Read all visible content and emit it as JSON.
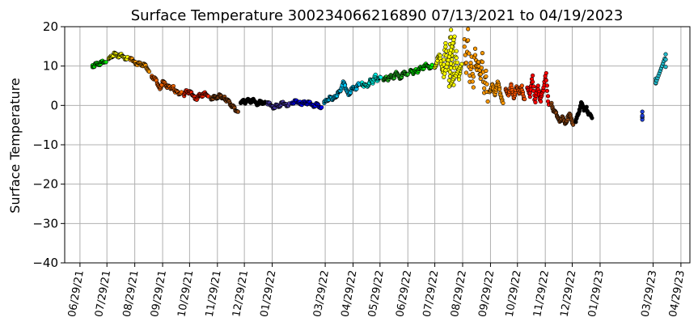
{
  "chart_data": {
    "type": "scatter",
    "title": "Surface Temperature 300234066216890  07/13/2021 to 04/19/2023",
    "xlabel": "",
    "ylabel": "Surface Temperature",
    "ylim": [
      -40,
      20
    ],
    "yticks": [
      -40,
      -30,
      -20,
      -10,
      0,
      10,
      20
    ],
    "xlim": [
      "2021-06-12",
      "2023-05-09"
    ],
    "xticks": [
      {
        "date": "2021-06-29",
        "label": "06/29/21"
      },
      {
        "date": "2021-07-29",
        "label": "07/29/21"
      },
      {
        "date": "2021-08-29",
        "label": "08/29/21"
      },
      {
        "date": "2021-09-29",
        "label": "09/29/21"
      },
      {
        "date": "2021-10-29",
        "label": "10/29/21"
      },
      {
        "date": "2021-11-29",
        "label": "11/29/21"
      },
      {
        "date": "2021-12-29",
        "label": "12/29/21"
      },
      {
        "date": "2022-01-29",
        "label": "01/29/22"
      },
      {
        "date": "2022-03-29",
        "label": "03/29/22"
      },
      {
        "date": "2022-04-29",
        "label": "04/29/22"
      },
      {
        "date": "2022-05-29",
        "label": "05/29/22"
      },
      {
        "date": "2022-06-29",
        "label": "06/29/22"
      },
      {
        "date": "2022-07-29",
        "label": "07/29/22"
      },
      {
        "date": "2022-08-29",
        "label": "08/29/22"
      },
      {
        "date": "2022-09-29",
        "label": "09/29/22"
      },
      {
        "date": "2022-10-29",
        "label": "10/29/22"
      },
      {
        "date": "2022-11-29",
        "label": "11/29/22"
      },
      {
        "date": "2022-12-29",
        "label": "12/29/22"
      },
      {
        "date": "2023-01-29",
        "label": "01/29/23"
      },
      {
        "date": "2023-03-29",
        "label": "03/29/23"
      },
      {
        "date": "2023-04-29",
        "label": "04/29/23"
      }
    ],
    "grid": true,
    "legend": "none",
    "series": [
      {
        "color": "#00e000",
        "points": [
          [
            "2021-07-13",
            10.2
          ],
          [
            "2021-07-16",
            10.4
          ],
          [
            "2021-07-19",
            10.6
          ],
          [
            "2021-07-22",
            10.5
          ],
          [
            "2021-07-25",
            10.9
          ],
          [
            "2021-07-28",
            11.0
          ]
        ]
      },
      {
        "color": "#ffff00",
        "points": [
          [
            "2021-07-31",
            11.8
          ],
          [
            "2021-08-03",
            12.6
          ],
          [
            "2021-08-06",
            13.2
          ],
          [
            "2021-08-09",
            12.8
          ],
          [
            "2021-08-12",
            12.4
          ],
          [
            "2021-08-15",
            12.6
          ],
          [
            "2021-08-18",
            12.2
          ],
          [
            "2021-08-21",
            12.3
          ]
        ]
      },
      {
        "color": "#ff9900",
        "points": [
          [
            "2021-08-24",
            11.6
          ],
          [
            "2021-08-27",
            11.3
          ],
          [
            "2021-08-30",
            11.0
          ],
          [
            "2021-09-02",
            10.7
          ],
          [
            "2021-09-05",
            10.5
          ],
          [
            "2021-09-08",
            10.2
          ],
          [
            "2021-09-11",
            9.6
          ],
          [
            "2021-09-14",
            8.6
          ]
        ]
      },
      {
        "color": "#ff6600",
        "points": [
          [
            "2021-09-17",
            7.5
          ],
          [
            "2021-09-20",
            6.8
          ],
          [
            "2021-09-23",
            5.6
          ],
          [
            "2021-09-26",
            4.4
          ],
          [
            "2021-09-29",
            6.0
          ],
          [
            "2021-10-02",
            5.5
          ],
          [
            "2021-10-05",
            4.6
          ],
          [
            "2021-10-08",
            4.2
          ],
          [
            "2021-10-11",
            4.9
          ],
          [
            "2021-10-14",
            3.6
          ],
          [
            "2021-10-17",
            3.0
          ],
          [
            "2021-10-20",
            3.4
          ]
        ]
      },
      {
        "color": "#ff2200",
        "points": [
          [
            "2021-10-23",
            2.4
          ],
          [
            "2021-10-26",
            3.8
          ],
          [
            "2021-10-29",
            3.2
          ],
          [
            "2021-11-01",
            2.7
          ],
          [
            "2021-11-04",
            2.2
          ],
          [
            "2021-11-07",
            1.9
          ],
          [
            "2021-11-10",
            2.8
          ],
          [
            "2021-11-13",
            2.4
          ],
          [
            "2021-11-16",
            2.9
          ],
          [
            "2021-11-19",
            2.3
          ]
        ]
      },
      {
        "color": "#8b4513",
        "points": [
          [
            "2021-11-22",
            2.0
          ],
          [
            "2021-11-25",
            2.2
          ],
          [
            "2021-11-28",
            1.9
          ],
          [
            "2021-12-01",
            2.4
          ],
          [
            "2021-12-04",
            1.8
          ],
          [
            "2021-12-07",
            2.2
          ],
          [
            "2021-12-10",
            1.4
          ],
          [
            "2021-12-13",
            0.6
          ],
          [
            "2021-12-16",
            -0.3
          ],
          [
            "2021-12-19",
            -1.3
          ],
          [
            "2021-12-22",
            -1.6
          ]
        ]
      },
      {
        "color": "#000000",
        "points": [
          [
            "2021-12-25",
            0.6
          ],
          [
            "2021-12-28",
            1.4
          ],
          [
            "2021-12-31",
            0.9
          ],
          [
            "2022-01-03",
            1.5
          ],
          [
            "2022-01-06",
            0.8
          ],
          [
            "2022-01-09",
            1.2
          ],
          [
            "2022-01-12",
            0.5
          ],
          [
            "2022-01-15",
            1.0
          ],
          [
            "2022-01-18",
            0.6
          ],
          [
            "2022-01-21",
            0.9
          ]
        ]
      },
      {
        "color": "#4b3aa8",
        "points": [
          [
            "2022-01-24",
            0.3
          ],
          [
            "2022-01-27",
            0.1
          ],
          [
            "2022-01-30",
            -0.3
          ],
          [
            "2022-02-02",
            0.0
          ],
          [
            "2022-02-05",
            -0.2
          ],
          [
            "2022-02-08",
            0.2
          ],
          [
            "2022-02-11",
            0.4
          ],
          [
            "2022-02-14",
            0.3
          ],
          [
            "2022-02-17",
            0.5
          ]
        ]
      },
      {
        "color": "#0000ff",
        "points": [
          [
            "2022-02-20",
            0.7
          ],
          [
            "2022-02-23",
            0.8
          ],
          [
            "2022-02-26",
            0.7
          ],
          [
            "2022-03-01",
            0.9
          ],
          [
            "2022-03-04",
            0.6
          ],
          [
            "2022-03-07",
            0.8
          ],
          [
            "2022-03-10",
            0.5
          ],
          [
            "2022-03-13",
            0.3
          ],
          [
            "2022-03-16",
            0.1
          ],
          [
            "2022-03-19",
            0.4
          ],
          [
            "2022-03-22",
            -0.1
          ],
          [
            "2022-03-25",
            -0.5
          ]
        ]
      },
      {
        "color": "#00ccff",
        "points": [
          [
            "2022-03-28",
            0.6
          ],
          [
            "2022-03-31",
            1.3
          ],
          [
            "2022-04-03",
            1.8
          ],
          [
            "2022-04-06",
            1.4
          ],
          [
            "2022-04-09",
            2.4
          ],
          [
            "2022-04-12",
            3.0
          ],
          [
            "2022-04-15",
            3.6
          ],
          [
            "2022-04-18",
            5.8
          ],
          [
            "2022-04-21",
            4.3
          ],
          [
            "2022-04-24",
            3.0
          ],
          [
            "2022-04-27",
            3.9
          ],
          [
            "2022-04-30",
            4.6
          ],
          [
            "2022-05-03",
            4.2
          ],
          [
            "2022-05-06",
            5.3
          ]
        ]
      },
      {
        "color": "#00ffee",
        "points": [
          [
            "2022-05-09",
            5.8
          ],
          [
            "2022-05-12",
            5.2
          ],
          [
            "2022-05-15",
            4.8
          ],
          [
            "2022-05-18",
            6.2
          ],
          [
            "2022-05-21",
            5.6
          ],
          [
            "2022-05-24",
            7.8
          ],
          [
            "2022-05-27",
            6.5
          ],
          [
            "2022-05-30",
            7.1
          ]
        ]
      },
      {
        "color": "#22bb22",
        "points": [
          [
            "2022-06-02",
            6.4
          ],
          [
            "2022-06-05",
            7.3
          ],
          [
            "2022-06-08",
            6.8
          ],
          [
            "2022-06-11",
            7.6
          ],
          [
            "2022-06-14",
            7.0
          ],
          [
            "2022-06-17",
            8.2
          ],
          [
            "2022-06-20",
            7.2
          ],
          [
            "2022-06-23",
            7.8
          ],
          [
            "2022-06-26",
            8.4
          ],
          [
            "2022-06-29",
            7.9
          ]
        ]
      },
      {
        "color": "#00ee00",
        "points": [
          [
            "2022-07-02",
            8.6
          ],
          [
            "2022-07-05",
            8.0
          ],
          [
            "2022-07-08",
            9.2
          ],
          [
            "2022-07-11",
            8.8
          ],
          [
            "2022-07-14",
            9.7
          ],
          [
            "2022-07-17",
            9.4
          ],
          [
            "2022-07-20",
            10.2
          ],
          [
            "2022-07-23",
            9.8
          ],
          [
            "2022-07-26",
            10.3
          ]
        ]
      },
      {
        "color": "#ffff00",
        "points": [
          [
            "2022-07-29",
            9.6
          ],
          [
            "2022-08-01",
            11.4
          ],
          [
            "2022-08-04",
            12.6
          ],
          [
            "2022-08-07",
            8.4
          ],
          [
            "2022-08-10",
            15.8
          ],
          [
            "2022-08-13",
            9.0
          ],
          [
            "2022-08-16",
            19.2
          ],
          [
            "2022-08-19",
            5.2
          ],
          [
            "2022-08-22",
            13.8
          ],
          [
            "2022-08-25",
            6.6
          ],
          [
            "2022-08-28",
            10.5
          ],
          [
            "2022-08-14",
            4.8
          ],
          [
            "2022-08-20",
            17.5
          ],
          [
            "2022-08-08",
            7.2
          ]
        ]
      },
      {
        "color": "#ff9900",
        "points": [
          [
            "2022-08-31",
            16.8
          ],
          [
            "2022-09-02",
            8.3
          ],
          [
            "2022-09-04",
            19.4
          ],
          [
            "2022-09-06",
            6.0
          ],
          [
            "2022-09-08",
            12.4
          ],
          [
            "2022-09-10",
            4.6
          ],
          [
            "2022-09-12",
            14.4
          ],
          [
            "2022-09-14",
            9.0
          ],
          [
            "2022-09-16",
            11.0
          ],
          [
            "2022-09-18",
            6.8
          ],
          [
            "2022-09-20",
            13.3
          ],
          [
            "2022-09-22",
            3.2
          ],
          [
            "2022-09-24",
            8.8
          ],
          [
            "2022-09-26",
            1.0
          ]
        ]
      },
      {
        "color": "#ff9900",
        "points": [
          [
            "2022-09-28",
            3.6
          ],
          [
            "2022-10-01",
            5.4
          ],
          [
            "2022-10-04",
            2.6
          ],
          [
            "2022-10-07",
            6.0
          ],
          [
            "2022-10-10",
            3.1
          ],
          [
            "2022-10-13",
            0.6
          ]
        ]
      },
      {
        "color": "#ff5500",
        "points": [
          [
            "2022-10-16",
            4.2
          ],
          [
            "2022-10-19",
            2.6
          ],
          [
            "2022-10-22",
            5.4
          ],
          [
            "2022-10-25",
            1.8
          ],
          [
            "2022-10-28",
            4.6
          ],
          [
            "2022-10-31",
            3.0
          ],
          [
            "2022-11-03",
            5.0
          ],
          [
            "2022-11-06",
            1.6
          ]
        ]
      },
      {
        "color": "#ff0000",
        "points": [
          [
            "2022-11-09",
            4.4
          ],
          [
            "2022-11-12",
            2.2
          ],
          [
            "2022-11-15",
            7.6
          ],
          [
            "2022-11-18",
            0.8
          ],
          [
            "2022-11-21",
            5.0
          ],
          [
            "2022-11-24",
            1.0
          ],
          [
            "2022-11-27",
            3.8
          ],
          [
            "2022-11-30",
            8.2
          ],
          [
            "2022-12-03",
            0.2
          ]
        ]
      },
      {
        "color": "#8b4513",
        "points": [
          [
            "2022-12-06",
            0.6
          ],
          [
            "2022-12-09",
            -1.6
          ],
          [
            "2022-12-12",
            -2.6
          ],
          [
            "2022-12-15",
            -3.8
          ],
          [
            "2022-12-18",
            -2.8
          ],
          [
            "2022-12-21",
            -4.6
          ],
          [
            "2022-12-24",
            -3.5
          ],
          [
            "2022-12-27",
            -2.4
          ],
          [
            "2022-12-30",
            -4.9
          ]
        ]
      },
      {
        "color": "#000000",
        "points": [
          [
            "2023-01-02",
            -4.2
          ],
          [
            "2023-01-05",
            -2.2
          ],
          [
            "2023-01-08",
            0.6
          ],
          [
            "2023-01-11",
            -1.3
          ],
          [
            "2023-01-14",
            -0.4
          ],
          [
            "2023-01-17",
            -2.1
          ],
          [
            "2023-01-20",
            -3.2
          ]
        ]
      },
      {
        "color": "#1f3fd8",
        "points": [
          [
            "2023-03-17",
            -1.6
          ],
          [
            "2023-03-17",
            -3.6
          ],
          [
            "2023-03-17",
            -2.6
          ]
        ]
      },
      {
        "color": "#22bbcc",
        "points": [
          [
            "2023-04-01",
            6.8
          ],
          [
            "2023-04-01",
            5.6
          ],
          [
            "2023-04-12",
            13.0
          ],
          [
            "2023-04-12",
            9.8
          ]
        ]
      }
    ]
  }
}
